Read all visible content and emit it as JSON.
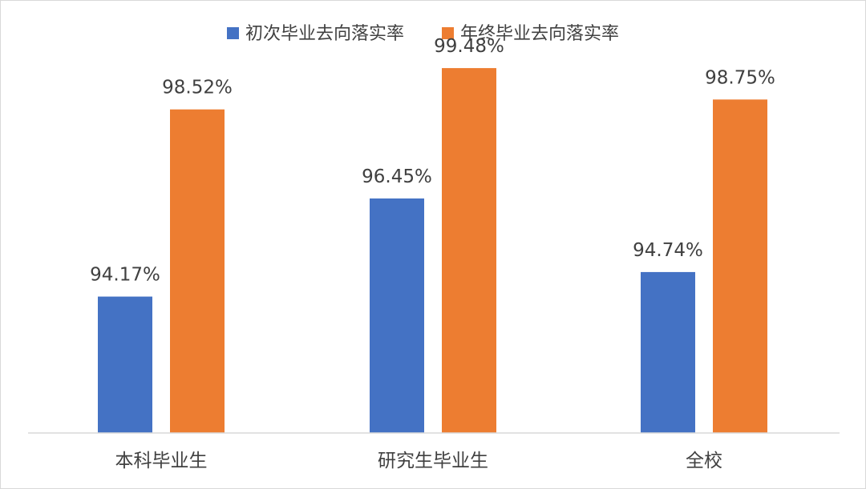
{
  "chart_data": {
    "type": "bar",
    "title": "",
    "xlabel": "",
    "ylabel": "",
    "ylim": [
      91.0,
      100.3
    ],
    "grid": false,
    "legend_position": "top",
    "categories": [
      "本科毕业生",
      "研究生毕业生",
      "全校"
    ],
    "series": [
      {
        "name": "初次毕业去向落实率",
        "color": "#4472C4",
        "values": [
          94.17,
          96.45,
          94.74
        ],
        "labels": [
          "94.17%",
          "96.45%",
          "94.74%"
        ]
      },
      {
        "name": "年终毕业去向落实率",
        "color": "#ED7D31",
        "values": [
          98.52,
          99.48,
          98.75
        ],
        "labels": [
          "98.52%",
          "99.48%",
          "98.75%"
        ]
      }
    ]
  }
}
